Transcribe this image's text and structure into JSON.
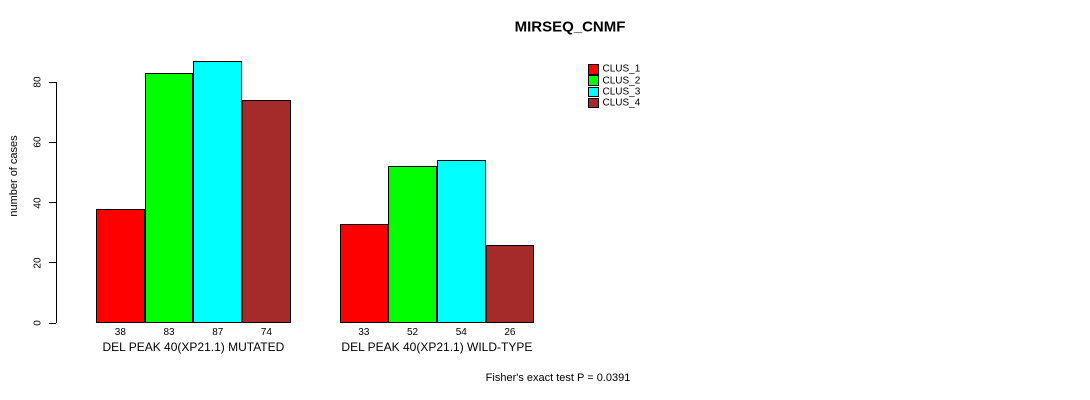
{
  "chart_data": {
    "type": "bar",
    "title": "MIRSEQ_CNMF",
    "ylabel": "number of cases",
    "xlabel": "",
    "annotation": "Fisher's exact test P = 0.0391",
    "yticks": [
      0,
      20,
      40,
      60,
      80
    ],
    "ylim": [
      0,
      88
    ],
    "grid": false,
    "value_labels_shown": true,
    "legend_position": "top-right",
    "categories": [
      "DEL PEAK 40(XP21.1) MUTATED",
      "DEL PEAK 40(XP21.1) WILD-TYPE"
    ],
    "series": [
      {
        "name": "CLUS_1",
        "color": "#FF0000",
        "values": [
          38,
          33
        ]
      },
      {
        "name": "CLUS_2",
        "color": "#00FF00",
        "values": [
          83,
          52
        ]
      },
      {
        "name": "CLUS_3",
        "color": "#00FFFF",
        "values": [
          87,
          54
        ]
      },
      {
        "name": "CLUS_4",
        "color": "#A52A2A",
        "values": [
          74,
          26
        ]
      }
    ]
  }
}
